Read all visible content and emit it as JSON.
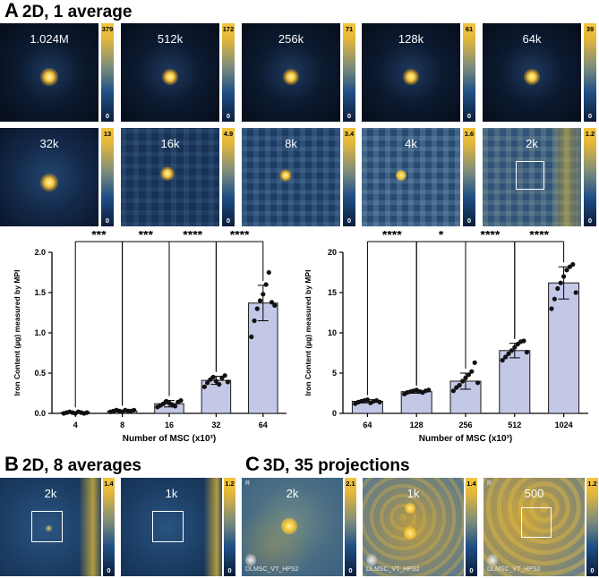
{
  "panel_a": {
    "letter": "A",
    "title": "2D, 1 average",
    "row1": [
      {
        "label": "1.024M",
        "max": "379",
        "min": "0"
      },
      {
        "label": "512k",
        "max": "172",
        "min": "0"
      },
      {
        "label": "256k",
        "max": "71",
        "min": "0"
      },
      {
        "label": "128k",
        "max": "61",
        "min": "0"
      },
      {
        "label": "64k",
        "max": "39",
        "min": "0"
      }
    ],
    "row2": [
      {
        "label": "32k",
        "max": "13",
        "min": "0"
      },
      {
        "label": "16k",
        "max": "4.9",
        "min": "0"
      },
      {
        "label": "8k",
        "max": "3.4",
        "min": "0"
      },
      {
        "label": "4k",
        "max": "1.6",
        "min": "0"
      },
      {
        "label": "2k",
        "max": "1.2",
        "min": "0"
      }
    ]
  },
  "panel_b": {
    "letter": "B",
    "title": "2D, 8 averages",
    "tiles": [
      {
        "label": "2k",
        "max": "1.4",
        "min": "0"
      },
      {
        "label": "1k",
        "max": "1.2",
        "min": "0"
      }
    ]
  },
  "panel_c": {
    "letter": "C",
    "title": "3D, 35 projections",
    "tiles": [
      {
        "label": "2k",
        "max": "2.1",
        "min": "0",
        "orientation": "R",
        "watermark": "DLMSC_VT_HPS2"
      },
      {
        "label": "1k",
        "max": "1.4",
        "min": "0",
        "orientation": "R",
        "watermark": "DLMSC_VT_HPS2"
      },
      {
        "label": "500",
        "max": "1.2",
        "min": "0",
        "orientation": "R",
        "watermark": "DLMSC_VT_HPS2"
      }
    ]
  },
  "colors": {
    "bar_fill": "#c3c8e6",
    "bar_edge": "#1a1a1a",
    "cmap_high": "#f2c53d",
    "cmap_low": "#0b1d38"
  },
  "chart_data": [
    {
      "type": "bar",
      "title": "",
      "xlabel": "Number of MSC (x10³)",
      "ylabel": "Iron Content (µg) measured by MPI",
      "categories": [
        "4",
        "8",
        "16",
        "32",
        "64"
      ],
      "values": [
        0.01,
        0.03,
        0.12,
        0.41,
        1.37
      ],
      "errors": [
        0.01,
        0.01,
        0.04,
        0.05,
        0.22
      ],
      "points": [
        [
          0.0,
          0.01,
          0.02,
          0.01,
          0.0,
          0.02,
          0.01,
          0.0,
          0.01
        ],
        [
          0.02,
          0.03,
          0.04,
          0.03,
          0.02,
          0.04,
          0.03,
          0.03,
          0.04
        ],
        [
          0.08,
          0.1,
          0.12,
          0.15,
          0.13,
          0.11,
          0.09,
          0.14,
          0.16
        ],
        [
          0.33,
          0.38,
          0.42,
          0.45,
          0.4,
          0.36,
          0.44,
          0.47,
          0.39
        ],
        [
          0.95,
          1.15,
          1.3,
          1.4,
          1.48,
          1.6,
          1.75,
          1.38,
          1.34
        ]
      ],
      "ylim": [
        0,
        2.0
      ],
      "yticks": [
        "0.0",
        "0.5",
        "1.0",
        "1.5",
        "2.0"
      ],
      "significance": [
        {
          "from": 0,
          "to": 1,
          "label": "***"
        },
        {
          "from": 1,
          "to": 2,
          "label": "***"
        },
        {
          "from": 2,
          "to": 3,
          "label": "****"
        },
        {
          "from": 3,
          "to": 4,
          "label": "****"
        }
      ]
    },
    {
      "type": "bar",
      "title": "",
      "xlabel": "Number of MSC (x10³)",
      "ylabel": "Iron Content (µg) measured by MPI",
      "categories": [
        "64",
        "128",
        "256",
        "512",
        "1024"
      ],
      "values": [
        1.5,
        2.7,
        4.0,
        7.8,
        16.2
      ],
      "errors": [
        0.2,
        0.2,
        1.0,
        0.9,
        2.0
      ],
      "points": [
        [
          1.2,
          1.4,
          1.5,
          1.6,
          1.7,
          1.3,
          1.5,
          1.6,
          1.4
        ],
        [
          2.4,
          2.6,
          2.7,
          2.8,
          2.9,
          2.7,
          2.6,
          2.8,
          2.9
        ],
        [
          2.8,
          3.2,
          3.5,
          4.0,
          4.4,
          4.8,
          5.2,
          6.3,
          3.8
        ],
        [
          6.6,
          7.0,
          7.4,
          7.8,
          8.2,
          8.6,
          8.9,
          9.0,
          7.6
        ],
        [
          13.0,
          14.2,
          15.5,
          16.2,
          17.0,
          17.8,
          18.2,
          18.5,
          15.0
        ]
      ],
      "ylim": [
        0,
        20
      ],
      "yticks": [
        "0",
        "5",
        "10",
        "15",
        "20"
      ],
      "significance": [
        {
          "from": 0,
          "to": 1,
          "label": "****"
        },
        {
          "from": 1,
          "to": 2,
          "label": "*"
        },
        {
          "from": 2,
          "to": 3,
          "label": "****"
        },
        {
          "from": 3,
          "to": 4,
          "label": "****"
        }
      ]
    }
  ]
}
